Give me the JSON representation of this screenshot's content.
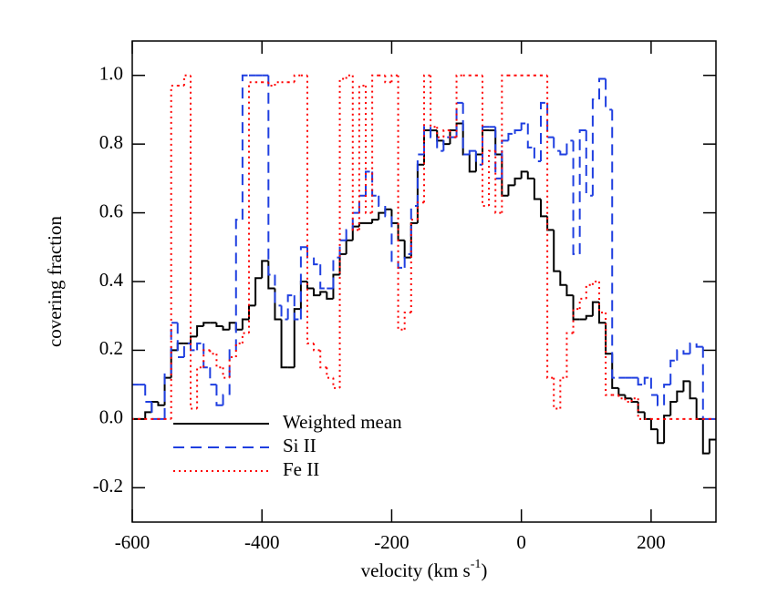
{
  "chart_data": {
    "type": "step",
    "ylabel": "covering fraction",
    "xlabel": [
      "velocity (km s",
      "-1",
      ")"
    ],
    "xlim": [
      -600,
      300
    ],
    "ylim": [
      -0.3,
      1.1
    ],
    "xticks": [
      -600,
      -400,
      -200,
      0,
      200
    ],
    "yticks": [
      -0.2,
      {
        "value": 0,
        "label": "0.0"
      },
      0.2,
      0.4,
      0.6,
      0.8,
      {
        "value": 1,
        "label": "1.0"
      }
    ],
    "legend": "lower left",
    "x": [
      -600,
      -590,
      -580,
      -570,
      -560,
      -550,
      -540,
      -530,
      -520,
      -510,
      -500,
      -490,
      -480,
      -470,
      -460,
      -450,
      -440,
      -430,
      -420,
      -410,
      -400,
      -390,
      -380,
      -370,
      -360,
      -350,
      -340,
      -330,
      -320,
      -310,
      -300,
      -290,
      -280,
      -270,
      -260,
      -250,
      -240,
      -230,
      -220,
      -210,
      -200,
      -190,
      -180,
      -170,
      -160,
      -150,
      -140,
      -130,
      -120,
      -110,
      -100,
      -90,
      -80,
      -70,
      -60,
      -50,
      -40,
      -30,
      -20,
      -10,
      0,
      10,
      20,
      30,
      40,
      50,
      60,
      70,
      80,
      90,
      100,
      110,
      120,
      130,
      140,
      150,
      160,
      170,
      180,
      190,
      200,
      210,
      220,
      230,
      240,
      250,
      260,
      270,
      280,
      290
    ],
    "series": [
      {
        "name": "Weighted mean",
        "color": "#000000",
        "dash": "solid",
        "values": [
          0,
          0,
          0.02,
          0.05,
          0.04,
          0.12,
          0.2,
          0.22,
          0.22,
          0.24,
          0.27,
          0.28,
          0.28,
          0.27,
          0.26,
          0.28,
          0.26,
          0.29,
          0.33,
          0.41,
          0.46,
          0.38,
          0.29,
          0.15,
          0.15,
          0.32,
          0.4,
          0.38,
          0.36,
          0.37,
          0.35,
          0.42,
          0.48,
          0.52,
          0.56,
          0.57,
          0.57,
          0.58,
          0.6,
          0.61,
          0.57,
          0.52,
          0.47,
          0.57,
          0.74,
          0.84,
          0.84,
          0.81,
          0.8,
          0.84,
          0.86,
          0.77,
          0.72,
          0.77,
          0.84,
          0.84,
          0.77,
          0.65,
          0.68,
          0.7,
          0.72,
          0.7,
          0.64,
          0.59,
          0.55,
          0.43,
          0.39,
          0.36,
          0.29,
          0.29,
          0.3,
          0.34,
          0.28,
          0.19,
          0.09,
          0.07,
          0.06,
          0.05,
          0.02,
          0,
          -0.03,
          -0.07,
          0.01,
          0.05,
          0.08,
          0.11,
          0.06,
          0,
          -0.1,
          -0.06
        ]
      },
      {
        "name": "Si II",
        "color": "#1f3fe0",
        "dash": "dashed",
        "values": [
          0.1,
          0.1,
          0.05,
          0,
          0,
          0.13,
          0.28,
          0.18,
          0.22,
          0.2,
          0.22,
          0.15,
          0.1,
          0.04,
          0.07,
          0.2,
          0.58,
          1,
          1,
          1,
          1,
          0.42,
          0.33,
          0.29,
          0.36,
          0.29,
          0.5,
          0.47,
          0.45,
          0.38,
          0.38,
          0.47,
          0.52,
          0.55,
          0.6,
          0.65,
          0.72,
          0.65,
          0.62,
          0.59,
          0.46,
          0.44,
          0.48,
          0.62,
          0.77,
          0.85,
          0.82,
          0.78,
          0.82,
          0.82,
          0.92,
          0.77,
          0.78,
          0.74,
          0.85,
          0.85,
          0.7,
          0.81,
          0.83,
          0.84,
          0.86,
          0.79,
          0.75,
          0.92,
          0.82,
          0.78,
          0.77,
          0.81,
          0.48,
          0.84,
          0.65,
          0.93,
          0.99,
          0.9,
          0.12,
          0.12,
          0.12,
          0.12,
          0.1,
          0.12,
          0.07,
          0.04,
          0.1,
          0.17,
          0.2,
          0.19,
          0.22,
          0.21,
          0,
          0
        ]
      },
      {
        "name": "Fe II",
        "color": "#ff0000",
        "dash": "dotted",
        "values": [
          0,
          0,
          0,
          0,
          0,
          0,
          0.97,
          0.97,
          1,
          0.03,
          0.15,
          0.2,
          0.19,
          0.15,
          0.12,
          0.18,
          0.22,
          0.25,
          0.98,
          0.98,
          0.98,
          0.97,
          0.98,
          0.98,
          0.98,
          1,
          1,
          0.22,
          0.2,
          0.15,
          0.12,
          0.09,
          0.99,
          1,
          0.55,
          0.97,
          0.6,
          1,
          1,
          0.98,
          1,
          0.26,
          0.31,
          0.58,
          0.63,
          1,
          0.85,
          0.82,
          0.84,
          0.82,
          1,
          1,
          1,
          1,
          0.62,
          0.78,
          0.6,
          1,
          1,
          1,
          1,
          1,
          1,
          1,
          0.12,
          0.03,
          0.12,
          0.25,
          0.32,
          0.35,
          0.39,
          0.4,
          0.31,
          0.07,
          0.07,
          0.06,
          0.05,
          0.06,
          0,
          0,
          0,
          0,
          0,
          0,
          0,
          0,
          0,
          0,
          0,
          0
        ]
      }
    ]
  }
}
